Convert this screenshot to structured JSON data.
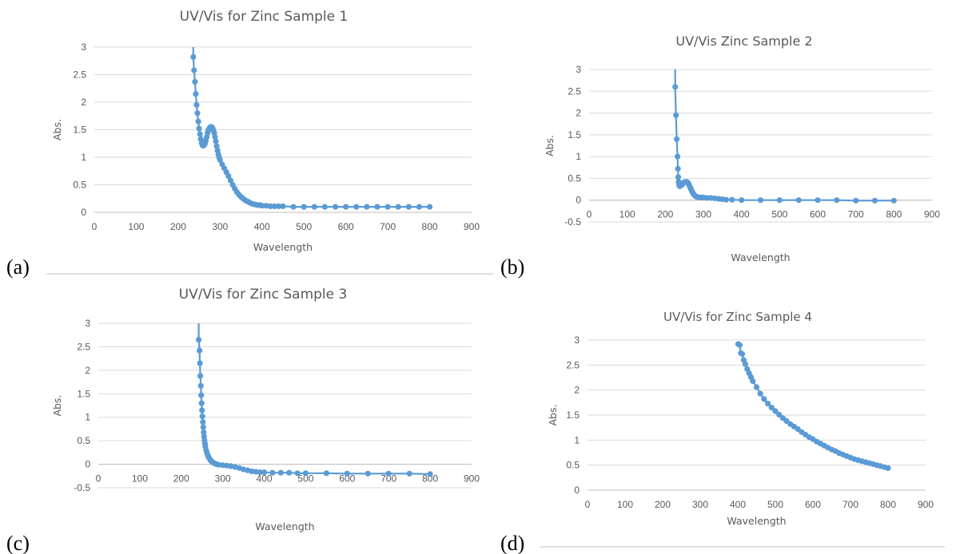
{
  "colors": {
    "series": "#5b9bd5",
    "grid": "#d9d9d9",
    "text": "#595959"
  },
  "chart_data": [
    {
      "type": "scatter",
      "panel_label": "(a)",
      "title": "UV/Vis for Zinc Sample 1",
      "xlabel": "Wavelength",
      "ylabel": "Abs.",
      "xlim": [
        0,
        900
      ],
      "ylim": [
        0,
        3
      ],
      "x_ticks": [
        "0",
        "100",
        "200",
        "300",
        "400",
        "500",
        "600",
        "700",
        "800",
        "900"
      ],
      "y_ticks": [
        "0",
        "0.5",
        "1",
        "1.5",
        "2",
        "2.5",
        "3"
      ],
      "grid": true,
      "legend": "none",
      "series": [
        {
          "x": [
            236,
            238,
            240,
            242,
            244,
            246,
            248,
            250,
            252,
            254,
            256,
            258,
            260,
            262,
            264,
            266,
            268,
            270,
            272,
            274,
            276,
            278,
            280,
            282,
            284,
            286,
            288,
            290,
            292,
            294,
            296,
            298,
            300,
            305,
            310,
            315,
            320,
            325,
            330,
            335,
            340,
            345,
            350,
            355,
            360,
            365,
            370,
            375,
            380,
            385,
            390,
            395,
            400,
            410,
            420,
            430,
            440,
            450,
            475,
            500,
            525,
            550,
            575,
            600,
            625,
            650,
            675,
            700,
            725,
            750,
            775,
            800
          ],
          "y": [
            2.82,
            2.58,
            2.37,
            2.15,
            1.95,
            1.8,
            1.65,
            1.52,
            1.42,
            1.33,
            1.26,
            1.22,
            1.21,
            1.22,
            1.25,
            1.3,
            1.37,
            1.44,
            1.49,
            1.52,
            1.54,
            1.55,
            1.55,
            1.53,
            1.49,
            1.44,
            1.37,
            1.29,
            1.2,
            1.12,
            1.05,
            0.99,
            0.95,
            0.87,
            0.8,
            0.73,
            0.66,
            0.58,
            0.5,
            0.43,
            0.37,
            0.32,
            0.28,
            0.25,
            0.22,
            0.2,
            0.18,
            0.16,
            0.15,
            0.14,
            0.13,
            0.13,
            0.12,
            0.12,
            0.11,
            0.11,
            0.11,
            0.11,
            0.1,
            0.1,
            0.1,
            0.1,
            0.1,
            0.1,
            0.1,
            0.1,
            0.1,
            0.1,
            0.1,
            0.1,
            0.1,
            0.1
          ]
        }
      ]
    },
    {
      "type": "scatter",
      "panel_label": "(b)",
      "title": "UV/Vis Zinc Sample 2",
      "xlabel": "Wavelength",
      "ylabel": "Abs.",
      "xlim": [
        0,
        900
      ],
      "ylim": [
        -0.5,
        3
      ],
      "x_ticks": [
        "0",
        "100",
        "200",
        "300",
        "400",
        "500",
        "600",
        "700",
        "800",
        "900"
      ],
      "y_ticks": [
        "-0.5",
        "0",
        "0.5",
        "1",
        "1.5",
        "2",
        "2.5",
        "3"
      ],
      "grid": true,
      "legend": "none",
      "series": [
        {
          "x": [
            226,
            228,
            230,
            232,
            233,
            234,
            235,
            236,
            237,
            238,
            240,
            242,
            244,
            246,
            248,
            250,
            252,
            254,
            256,
            258,
            260,
            262,
            264,
            266,
            268,
            270,
            272,
            275,
            278,
            281,
            285,
            290,
            295,
            300,
            310,
            320,
            330,
            340,
            350,
            360,
            375,
            400,
            450,
            500,
            550,
            600,
            650,
            700,
            750,
            800
          ],
          "y": [
            2.6,
            1.95,
            1.4,
            1.0,
            0.72,
            0.53,
            0.42,
            0.36,
            0.33,
            0.32,
            0.33,
            0.34,
            0.36,
            0.38,
            0.4,
            0.41,
            0.42,
            0.42,
            0.42,
            0.41,
            0.39,
            0.36,
            0.32,
            0.28,
            0.24,
            0.2,
            0.17,
            0.13,
            0.1,
            0.08,
            0.07,
            0.06,
            0.06,
            0.06,
            0.05,
            0.05,
            0.04,
            0.03,
            0.02,
            0.01,
            0.01,
            0.0,
            0.0,
            0.0,
            0.0,
            0.0,
            0.0,
            -0.01,
            -0.01,
            -0.01
          ]
        }
      ]
    },
    {
      "type": "scatter",
      "panel_label": "(c)",
      "title": "UV/Vis for Zinc Sample 3",
      "xlabel": "Wavelength",
      "ylabel": "Abs.",
      "xlim": [
        0,
        900
      ],
      "ylim": [
        -0.5,
        3
      ],
      "x_ticks": [
        "0",
        "100",
        "200",
        "300",
        "400",
        "500",
        "600",
        "700",
        "800",
        "900"
      ],
      "y_ticks": [
        "-0.5",
        "0",
        "0.5",
        "1",
        "1.5",
        "2",
        "2.5",
        "3"
      ],
      "grid": true,
      "legend": "none",
      "series": [
        {
          "x": [
            242,
            244,
            245,
            246,
            247,
            248,
            249,
            250,
            251,
            252,
            253,
            254,
            255,
            256,
            257,
            258,
            260,
            262,
            264,
            266,
            268,
            270,
            273,
            276,
            280,
            285,
            290,
            300,
            310,
            320,
            330,
            340,
            350,
            360,
            370,
            380,
            390,
            400,
            420,
            440,
            460,
            480,
            500,
            550,
            600,
            650,
            700,
            750,
            800
          ],
          "y": [
            2.65,
            2.42,
            2.15,
            1.88,
            1.67,
            1.47,
            1.3,
            1.15,
            1.02,
            0.9,
            0.79,
            0.68,
            0.59,
            0.51,
            0.44,
            0.38,
            0.3,
            0.24,
            0.19,
            0.15,
            0.12,
            0.09,
            0.06,
            0.04,
            0.02,
            0.0,
            -0.01,
            -0.02,
            -0.03,
            -0.04,
            -0.06,
            -0.08,
            -0.11,
            -0.13,
            -0.15,
            -0.16,
            -0.17,
            -0.17,
            -0.18,
            -0.18,
            -0.18,
            -0.19,
            -0.19,
            -0.19,
            -0.2,
            -0.2,
            -0.2,
            -0.2,
            -0.21
          ]
        }
      ]
    },
    {
      "type": "scatter",
      "panel_label": "(d)",
      "title": "UV/Vis for Zinc Sample 4",
      "xlabel": "Wavelength",
      "ylabel": "Abs.",
      "xlim": [
        0,
        900
      ],
      "ylim": [
        0,
        3
      ],
      "x_ticks": [
        "0",
        "100",
        "200",
        "300",
        "400",
        "500",
        "600",
        "700",
        "800",
        "900"
      ],
      "y_ticks": [
        "0",
        "0.5",
        "1",
        "1.5",
        "2",
        "2.5",
        "3"
      ],
      "grid": true,
      "legend": "none",
      "series": [
        {
          "x": [
            401,
            405,
            408,
            412,
            416,
            420,
            425,
            430,
            435,
            440,
            450,
            460,
            470,
            480,
            490,
            500,
            510,
            520,
            530,
            540,
            550,
            560,
            570,
            580,
            590,
            600,
            610,
            620,
            630,
            640,
            650,
            660,
            670,
            680,
            690,
            700,
            710,
            720,
            730,
            740,
            750,
            760,
            770,
            780,
            790,
            800
          ],
          "y": [
            2.92,
            2.9,
            2.74,
            2.72,
            2.6,
            2.52,
            2.42,
            2.34,
            2.26,
            2.18,
            2.06,
            1.93,
            1.82,
            1.73,
            1.65,
            1.58,
            1.51,
            1.44,
            1.38,
            1.32,
            1.27,
            1.22,
            1.16,
            1.11,
            1.06,
            1.02,
            0.97,
            0.93,
            0.89,
            0.85,
            0.81,
            0.78,
            0.74,
            0.71,
            0.68,
            0.65,
            0.62,
            0.6,
            0.58,
            0.56,
            0.54,
            0.52,
            0.5,
            0.48,
            0.46,
            0.44
          ]
        }
      ]
    }
  ]
}
